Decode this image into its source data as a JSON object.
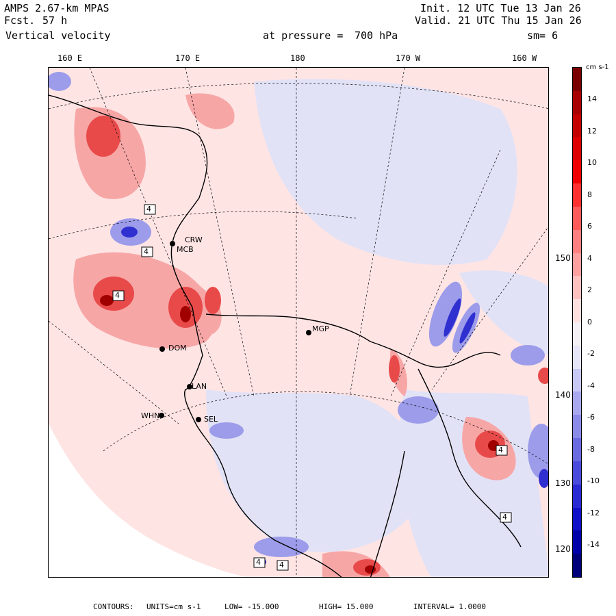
{
  "header": {
    "model": "AMPS 2.67-km MPAS",
    "forecast_label": "Fcst.",
    "forecast_value": "57 h",
    "field": "Vertical velocity",
    "init": "Init. 12 UTC Tue 13 Jan 26",
    "valid": "Valid. 21 UTC Thu 15 Jan 26",
    "pressure_label": "at pressure =",
    "pressure_value": "700 hPa",
    "smoothing": "sm= 6"
  },
  "longitude_labels": [
    "160 E",
    "170 E",
    "180",
    "170 W",
    "160 W"
  ],
  "latitude_labels": [
    "150 W",
    "140 W",
    "130 W",
    "120 W"
  ],
  "stations": [
    {
      "name": "CRW"
    },
    {
      "name": "MCB"
    },
    {
      "name": "DOM"
    },
    {
      "name": "LAN"
    },
    {
      "name": "WHN"
    },
    {
      "name": "SEL"
    },
    {
      "name": "MGP"
    }
  ],
  "map_markers": [
    "4",
    "4",
    "4",
    "4",
    "4",
    "4",
    "4"
  ],
  "colorbar": {
    "units": "cm s-1",
    "ticks": [
      "14",
      "12",
      "10",
      "8",
      "6",
      "4",
      "2",
      "0",
      "-2",
      "-4",
      "-6",
      "-8",
      "-10",
      "-12",
      "-14"
    ],
    "colors": [
      "#7a0000",
      "#a80000",
      "#c40000",
      "#de0000",
      "#f00000",
      "#ff3030",
      "#ff5a5a",
      "#ff8080",
      "#ffa0a0",
      "#ffc0c0",
      "#ffe0e0",
      "#f5f0f5",
      "#e6e6f8",
      "#c8c8f5",
      "#a8a8ee",
      "#8a8ae8",
      "#6a6ae0",
      "#4a4adc",
      "#2a2ad4",
      "#1010c8",
      "#0000a8",
      "#00007a"
    ]
  },
  "footer": {
    "contours_label": "CONTOURS:",
    "units": "UNITS=cm s-1",
    "low": "LOW= -15.000",
    "high": "HIGH= 15.000",
    "interval": "INTERVAL= 1.0000"
  }
}
